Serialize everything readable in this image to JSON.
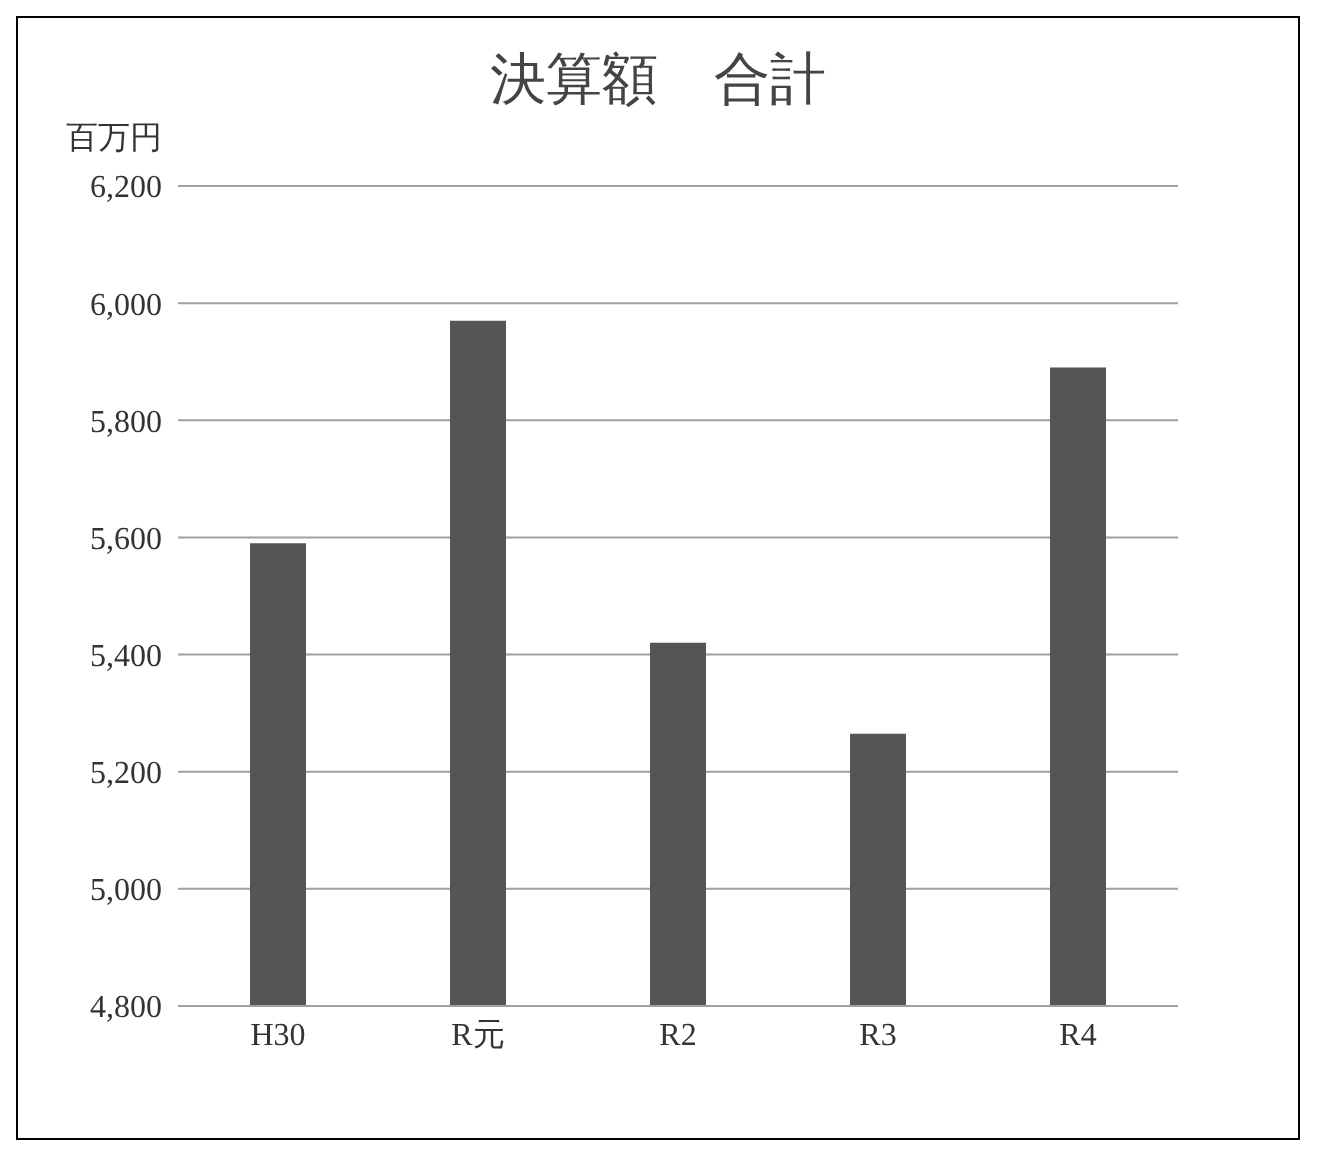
{
  "chart_data": {
    "type": "bar",
    "title": "決算額　合計",
    "ylabel": "百万円",
    "categories": [
      "H30",
      "R元",
      "R2",
      "R3",
      "R4"
    ],
    "values": [
      5590,
      5970,
      5420,
      5265,
      5890
    ],
    "color": "#555555",
    "ylim": [
      4800,
      6200
    ],
    "yticks": [
      {
        "value": 4800,
        "label": "4,800"
      },
      {
        "value": 5000,
        "label": "5,000"
      },
      {
        "value": 5200,
        "label": "5,200"
      },
      {
        "value": 5400,
        "label": "5,400"
      },
      {
        "value": 5600,
        "label": "5,600"
      },
      {
        "value": 5800,
        "label": "5,800"
      },
      {
        "value": 6000,
        "label": "6,000"
      },
      {
        "value": 6200,
        "label": "6,200"
      }
    ],
    "grid": "y"
  }
}
